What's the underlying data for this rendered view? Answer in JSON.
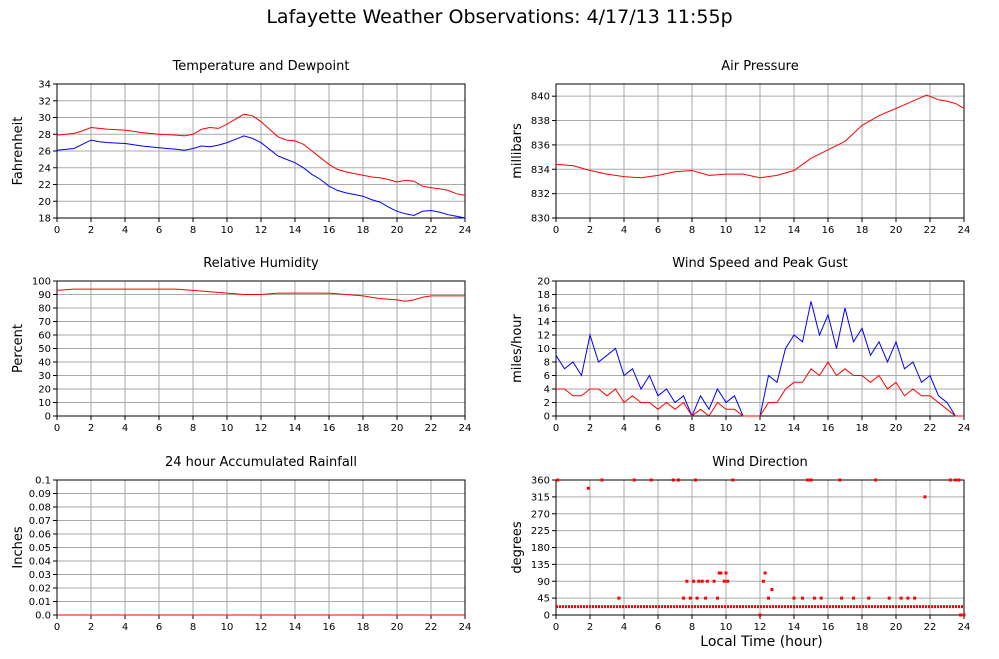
{
  "page": {
    "title": "Lafayette Weather Observations: 4/17/13 11:55p",
    "x_caption": "Local Time (hour)"
  },
  "colors": {
    "red": "#ff0000",
    "blue": "#0000ff",
    "grid": "#aaaaaa",
    "frame": "#000000"
  },
  "chart_data": [
    {
      "id": "temperature",
      "type": "line",
      "title": "Temperature and Dewpoint",
      "ylabel": "Fahrenheit",
      "xlim": [
        0,
        24
      ],
      "ylim": [
        18,
        34
      ],
      "xticks": [
        0,
        2,
        4,
        6,
        8,
        10,
        12,
        14,
        16,
        18,
        20,
        22,
        24
      ],
      "yticks": [
        18,
        20,
        22,
        24,
        26,
        28,
        30,
        32,
        34
      ],
      "grid": true,
      "series": [
        {
          "color": "#ff0000",
          "x": [
            0,
            1,
            1.5,
            2,
            2.5,
            3,
            4,
            5,
            6,
            7,
            7.5,
            8,
            8.5,
            9,
            9.5,
            10,
            10.5,
            11,
            11.5,
            12,
            12.5,
            13,
            13.5,
            14,
            14.5,
            15,
            15.5,
            16,
            16.5,
            17,
            17.5,
            18,
            18.5,
            19,
            19.5,
            20,
            20.5,
            21,
            21.5,
            22,
            22.5,
            23,
            23.5,
            24
          ],
          "y": [
            27.9,
            28.1,
            28.4,
            28.8,
            28.7,
            28.6,
            28.5,
            28.2,
            28.0,
            27.9,
            27.8,
            28.0,
            28.6,
            28.8,
            28.7,
            29.2,
            29.8,
            30.4,
            30.2,
            29.5,
            28.6,
            27.7,
            27.3,
            27.2,
            26.8,
            26.0,
            25.2,
            24.4,
            23.8,
            23.5,
            23.3,
            23.1,
            22.9,
            22.8,
            22.6,
            22.3,
            22.5,
            22.4,
            21.8,
            21.6,
            21.5,
            21.3,
            20.9,
            20.7
          ]
        },
        {
          "color": "#0000ff",
          "x": [
            0,
            1,
            1.5,
            2,
            2.5,
            3,
            4,
            5,
            6,
            7,
            7.5,
            8,
            8.5,
            9,
            9.5,
            10,
            10.5,
            11,
            11.5,
            12,
            12.5,
            13,
            13.5,
            14,
            14.5,
            15,
            15.5,
            16,
            16.5,
            17,
            17.5,
            18,
            18.5,
            19,
            19.5,
            20,
            20.5,
            21,
            21.5,
            22,
            22.5,
            23,
            23.5,
            24
          ],
          "y": [
            26.1,
            26.3,
            26.8,
            27.3,
            27.1,
            27.0,
            26.9,
            26.6,
            26.4,
            26.2,
            26.1,
            26.3,
            26.6,
            26.5,
            26.7,
            27.0,
            27.4,
            27.8,
            27.5,
            27.0,
            26.2,
            25.4,
            25.0,
            24.6,
            24.0,
            23.2,
            22.6,
            21.8,
            21.3,
            21.0,
            20.8,
            20.6,
            20.2,
            19.9,
            19.3,
            18.8,
            18.5,
            18.3,
            18.8,
            18.9,
            18.7,
            18.4,
            18.2,
            18.0
          ]
        }
      ]
    },
    {
      "id": "pressure",
      "type": "line",
      "title": "Air Pressure",
      "ylabel": "millibars",
      "xlim": [
        0,
        24
      ],
      "ylim": [
        830,
        841
      ],
      "xticks": [
        0,
        2,
        4,
        6,
        8,
        10,
        12,
        14,
        16,
        18,
        20,
        22,
        24
      ],
      "yticks": [
        830,
        832,
        834,
        836,
        838,
        840
      ],
      "grid": true,
      "series": [
        {
          "color": "#ff0000",
          "x": [
            0,
            1,
            2,
            3,
            4,
            5,
            6,
            7,
            8,
            9,
            10,
            11,
            12,
            13,
            14,
            15,
            16,
            17,
            18,
            19,
            20,
            21,
            21.8,
            22.5,
            23,
            23.5,
            24
          ],
          "y": [
            834.4,
            834.3,
            833.9,
            833.6,
            833.4,
            833.3,
            833.5,
            833.8,
            833.9,
            833.5,
            833.6,
            833.6,
            833.3,
            833.5,
            833.9,
            834.9,
            835.6,
            836.3,
            837.6,
            838.4,
            839.0,
            839.6,
            840.1,
            839.7,
            839.6,
            839.4,
            839.0
          ]
        }
      ]
    },
    {
      "id": "humidity",
      "type": "line",
      "title": "Relative Humidity",
      "ylabel": "Percent",
      "xlim": [
        0,
        24
      ],
      "ylim": [
        0,
        100
      ],
      "xticks": [
        0,
        2,
        4,
        6,
        8,
        10,
        12,
        14,
        16,
        18,
        20,
        22,
        24
      ],
      "yticks": [
        0,
        10,
        20,
        30,
        40,
        50,
        60,
        70,
        80,
        90,
        100
      ],
      "grid": true,
      "series": [
        {
          "color": "#ff0000",
          "x": [
            0,
            1,
            2,
            3,
            4,
            5,
            6,
            7,
            8,
            9,
            10,
            11,
            12,
            13,
            14,
            15,
            16,
            17,
            18,
            19,
            20,
            20.5,
            21,
            21.5,
            22,
            23,
            24
          ],
          "y": [
            93,
            94,
            94,
            94,
            94,
            94,
            94,
            94,
            93,
            92,
            91,
            90,
            90,
            91,
            91,
            91,
            91,
            90,
            89,
            87,
            86,
            85,
            86,
            88,
            89,
            89,
            89
          ]
        }
      ]
    },
    {
      "id": "wind",
      "type": "line",
      "title": "Wind Speed and Peak Gust",
      "ylabel": "miles/hour",
      "xlim": [
        0,
        24
      ],
      "ylim": [
        0,
        20
      ],
      "xticks": [
        0,
        2,
        4,
        6,
        8,
        10,
        12,
        14,
        16,
        18,
        20,
        22,
        24
      ],
      "yticks": [
        0,
        2,
        4,
        6,
        8,
        10,
        12,
        14,
        16,
        18,
        20
      ],
      "grid": true,
      "series": [
        {
          "color": "#0000ff",
          "x": [
            0,
            0.5,
            1,
            1.5,
            2,
            2.5,
            3,
            3.5,
            4,
            4.5,
            5,
            5.5,
            6,
            6.5,
            7,
            7.5,
            8,
            8.5,
            9,
            9.5,
            10,
            10.5,
            11,
            11.5,
            12,
            12.5,
            13,
            13.5,
            14,
            14.5,
            15,
            15.5,
            16,
            16.5,
            17,
            17.5,
            18,
            18.5,
            19,
            19.5,
            20,
            20.5,
            21,
            21.5,
            22,
            22.5,
            23,
            23.5,
            24
          ],
          "y": [
            9,
            7,
            8,
            6,
            12,
            8,
            9,
            10,
            6,
            7,
            4,
            6,
            3,
            4,
            2,
            3,
            0,
            3,
            1,
            4,
            2,
            3,
            0,
            0,
            0,
            6,
            5,
            10,
            12,
            11,
            17,
            12,
            15,
            10,
            16,
            11,
            13,
            9,
            11,
            8,
            11,
            7,
            8,
            5,
            6,
            3,
            2,
            0,
            0
          ]
        },
        {
          "color": "#ff0000",
          "x": [
            0,
            0.5,
            1,
            1.5,
            2,
            2.5,
            3,
            3.5,
            4,
            4.5,
            5,
            5.5,
            6,
            6.5,
            7,
            7.5,
            8,
            8.5,
            9,
            9.5,
            10,
            10.5,
            11,
            11.5,
            12,
            12.5,
            13,
            13.5,
            14,
            14.5,
            15,
            15.5,
            16,
            16.5,
            17,
            17.5,
            18,
            18.5,
            19,
            19.5,
            20,
            20.5,
            21,
            21.5,
            22,
            22.5,
            23,
            23.5,
            24
          ],
          "y": [
            4,
            4,
            3,
            3,
            4,
            4,
            3,
            4,
            2,
            3,
            2,
            2,
            1,
            2,
            1,
            2,
            0,
            1,
            0,
            2,
            1,
            1,
            0,
            0,
            0,
            2,
            2,
            4,
            5,
            5,
            7,
            6,
            8,
            6,
            7,
            6,
            6,
            5,
            6,
            4,
            5,
            3,
            4,
            3,
            3,
            2,
            1,
            0,
            0
          ]
        }
      ]
    },
    {
      "id": "rainfall",
      "type": "line",
      "title": "24 hour Accumulated Rainfall",
      "ylabel": "Inches",
      "xlim": [
        0,
        24
      ],
      "ylim": [
        0,
        0.1
      ],
      "xticks": [
        0,
        2,
        4,
        6,
        8,
        10,
        12,
        14,
        16,
        18,
        20,
        22,
        24
      ],
      "yticks": [
        "0.0",
        "0.01",
        "0.02",
        "0.03",
        "0.04",
        "0.05",
        "0.06",
        "0.07",
        "0.08",
        "0.09",
        "0.1"
      ],
      "grid": true,
      "series": [
        {
          "color": "#ff0000",
          "x": [
            0,
            24
          ],
          "y": [
            0,
            0
          ]
        }
      ]
    },
    {
      "id": "direction",
      "type": "scatter",
      "title": "Wind Direction",
      "ylabel": "degrees",
      "xlim": [
        0,
        24
      ],
      "ylim": [
        0,
        360
      ],
      "xticks": [
        0,
        2,
        4,
        6,
        8,
        10,
        12,
        14,
        16,
        18,
        20,
        22,
        24
      ],
      "yticks": [
        0,
        45,
        90,
        135,
        180,
        225,
        270,
        315,
        360
      ],
      "grid": true,
      "series": [
        {
          "color": "#ff0000",
          "x": [
            0.1,
            1.9,
            2.7,
            4.6,
            5.6,
            6.9,
            7.2,
            8.2,
            10.4,
            14.8,
            15.0,
            16.7,
            18.8,
            21.7,
            23.2,
            23.5,
            23.7,
            3.7,
            7.5,
            7.7,
            7.9,
            8.1,
            8.3,
            8.4,
            8.6,
            8.8,
            8.9,
            9.3,
            9.5,
            9.6,
            9.7,
            9.9,
            10.0,
            10.1,
            12.0,
            12.2,
            12.3,
            12.5,
            12.7,
            14.0,
            14.5,
            15.2,
            15.6,
            16.8,
            17.5,
            18.4,
            19.6,
            20.3,
            20.7,
            21.1,
            23.8,
            24.0
          ],
          "y": [
            360,
            338,
            360,
            360,
            360,
            360,
            360,
            360,
            360,
            360,
            360,
            360,
            360,
            315,
            360,
            360,
            360,
            45,
            45,
            90,
            45,
            90,
            45,
            90,
            90,
            45,
            90,
            90,
            45,
            112,
            112,
            90,
            112,
            90,
            0,
            90,
            112,
            45,
            68,
            45,
            45,
            45,
            45,
            45,
            45,
            45,
            45,
            45,
            45,
            45,
            0,
            0
          ],
          "band_deg": 22.5,
          "band_x": [
            0,
            24
          ]
        }
      ]
    }
  ]
}
